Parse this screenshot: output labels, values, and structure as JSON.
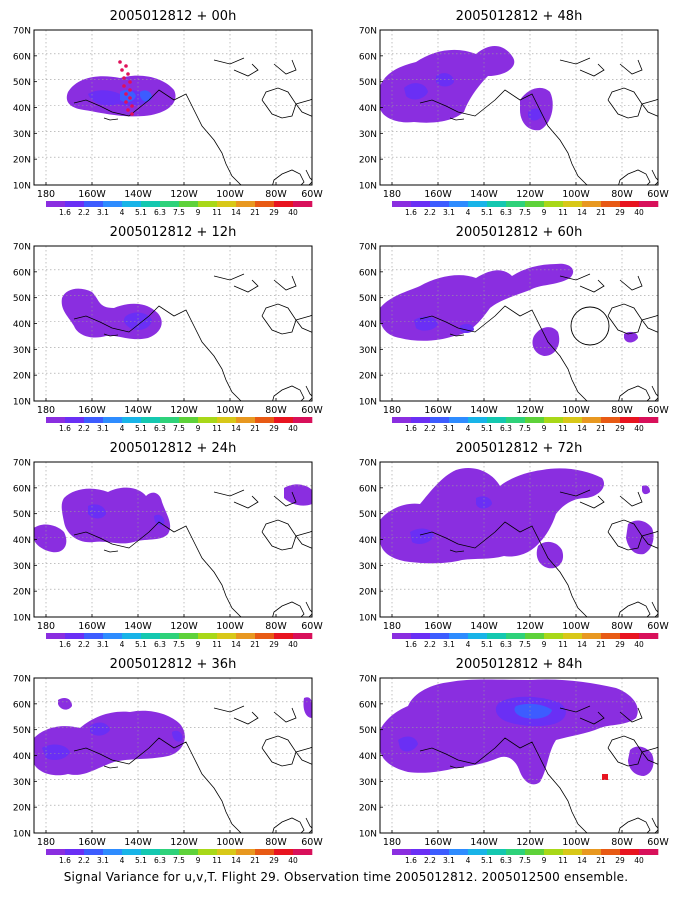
{
  "caption": "Signal Variance for u,v,T. Flight 29. Observation time 2005012812. 2005012500 ensemble.",
  "lat_labels": [
    "70N",
    "60N",
    "50N",
    "40N",
    "30N",
    "20N",
    "10N"
  ],
  "lon_labels": [
    "180",
    "160W",
    "140W",
    "120W",
    "100W",
    "80W",
    "60W"
  ],
  "colorbar": {
    "labels": [
      "1.6",
      "2.2",
      "3.1",
      "4",
      "5.1",
      "6.3",
      "7.5",
      "9",
      "11",
      "14",
      "21",
      "29",
      "40"
    ],
    "colors": [
      "#8a2ee0",
      "#6a2ff5",
      "#3d5cff",
      "#2e8cff",
      "#18b4e8",
      "#14c8b0",
      "#2ed27a",
      "#5ed23a",
      "#a8d818",
      "#d8c818",
      "#e89820",
      "#e85a14",
      "#e81420",
      "#d8105a"
    ]
  },
  "panels": [
    {
      "id": "p00",
      "title": "2005012812 + 00h"
    },
    {
      "id": "p48",
      "title": "2005012812 + 48h"
    },
    {
      "id": "p12",
      "title": "2005012812 + 12h"
    },
    {
      "id": "p60",
      "title": "2005012812 + 60h"
    },
    {
      "id": "p24",
      "title": "2005012812 + 24h"
    },
    {
      "id": "p72",
      "title": "2005012812 + 72h"
    },
    {
      "id": "p36",
      "title": "2005012812 + 36h"
    },
    {
      "id": "p84",
      "title": "2005012812 + 84h"
    }
  ]
}
